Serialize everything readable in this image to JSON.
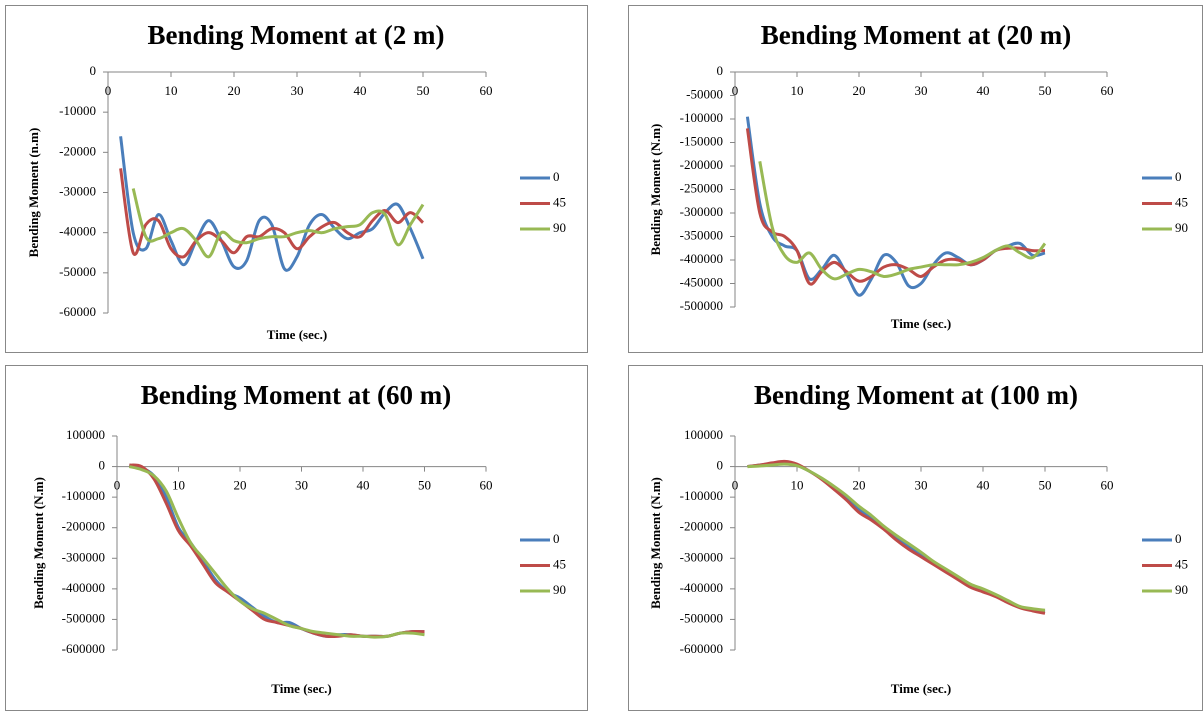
{
  "chart_data": [
    {
      "type": "line",
      "title": "Bending Moment at (2 m)",
      "x_label": "Time (sec.)",
      "y_label": "Bending Moment (n.m)",
      "x": [
        2,
        4,
        6,
        8,
        10,
        12,
        14,
        16,
        18,
        20,
        22,
        24,
        26,
        28,
        30,
        32,
        34,
        36,
        38,
        40,
        42,
        44,
        46,
        48,
        50
      ],
      "xlim": [
        0,
        60
      ],
      "xticks": [
        0,
        10,
        20,
        30,
        40,
        50,
        60
      ],
      "ylim": [
        -60000,
        0
      ],
      "yticks": [
        0,
        -10000,
        -20000,
        -30000,
        -40000,
        -50000,
        -60000
      ],
      "legend": "right",
      "series": [
        {
          "name": "0",
          "color": "#4a7ebb",
          "values": [
            -16000,
            -40000,
            -44000,
            -35500,
            -42000,
            -48000,
            -42000,
            -37000,
            -42000,
            -48500,
            -47000,
            -37000,
            -38000,
            -49000,
            -46000,
            -38000,
            -35500,
            -39000,
            -41500,
            -40000,
            -39000,
            -35000,
            -33000,
            -39000,
            -46500
          ]
        },
        {
          "name": "45",
          "color": "#be4b48",
          "values": [
            -24000,
            -45000,
            -38000,
            -37000,
            -44000,
            -46000,
            -42000,
            -40000,
            -42000,
            -45000,
            -41000,
            -41000,
            -39000,
            -40000,
            -44000,
            -41000,
            -38500,
            -37500,
            -40000,
            -41000,
            -37000,
            -34500,
            -37500,
            -35000,
            -37500
          ]
        },
        {
          "name": "90",
          "color": "#98b954",
          "values": [
            null,
            -29000,
            -41000,
            -41500,
            -40000,
            -39000,
            -42000,
            -46000,
            -40000,
            -42000,
            -42500,
            -41500,
            -41000,
            -41000,
            -40000,
            -39500,
            -40000,
            -39000,
            -38500,
            -38000,
            -35000,
            -35500,
            -43000,
            -38000,
            -33000
          ]
        }
      ]
    },
    {
      "type": "line",
      "title": "Bending Moment at (20 m)",
      "x_label": "Time (sec.)",
      "y_label": "Bending Moment (N.m)",
      "x": [
        2,
        4,
        6,
        8,
        10,
        12,
        14,
        16,
        18,
        20,
        22,
        24,
        26,
        28,
        30,
        32,
        34,
        36,
        38,
        40,
        42,
        44,
        46,
        48,
        50
      ],
      "xlim": [
        0,
        60
      ],
      "xticks": [
        0,
        10,
        20,
        30,
        40,
        50,
        60
      ],
      "ylim": [
        -500000,
        0
      ],
      "yticks": [
        0,
        -50000,
        -100000,
        -150000,
        -200000,
        -250000,
        -300000,
        -350000,
        -400000,
        -450000,
        -500000
      ],
      "legend": "right",
      "series": [
        {
          "name": "0",
          "color": "#4a7ebb",
          "values": [
            -95000,
            -280000,
            -350000,
            -370000,
            -380000,
            -440000,
            -420000,
            -390000,
            -430000,
            -475000,
            -440000,
            -390000,
            -405000,
            -455000,
            -450000,
            -410000,
            -385000,
            -395000,
            -410000,
            -400000,
            -380000,
            -370000,
            -365000,
            -390000,
            -385000
          ]
        },
        {
          "name": "45",
          "color": "#be4b48",
          "values": [
            -120000,
            -300000,
            -340000,
            -350000,
            -380000,
            -450000,
            -425000,
            -405000,
            -425000,
            -445000,
            -435000,
            -415000,
            -410000,
            -420000,
            -435000,
            -415000,
            -400000,
            -400000,
            -410000,
            -400000,
            -380000,
            -375000,
            -375000,
            -380000,
            -380000
          ]
        },
        {
          "name": "90",
          "color": "#98b954",
          "values": [
            null,
            -190000,
            -330000,
            -390000,
            -405000,
            -385000,
            -420000,
            -440000,
            -430000,
            -420000,
            -425000,
            -435000,
            -430000,
            -420000,
            -415000,
            -410000,
            -410000,
            -410000,
            -405000,
            -395000,
            -380000,
            -370000,
            -385000,
            -395000,
            -365000
          ]
        }
      ]
    },
    {
      "type": "line",
      "title": "Bending Moment at (60 m)",
      "x_label": "Time (sec.)",
      "y_label": "Bending Moment (N.m)",
      "x": [
        2,
        4,
        6,
        8,
        10,
        12,
        14,
        16,
        18,
        20,
        22,
        24,
        26,
        28,
        30,
        32,
        34,
        36,
        38,
        40,
        42,
        44,
        46,
        48,
        50
      ],
      "xlim": [
        0,
        60
      ],
      "xticks": [
        0,
        10,
        20,
        30,
        40,
        50,
        60
      ],
      "ylim": [
        -600000,
        100000
      ],
      "yticks": [
        100000,
        0,
        -100000,
        -200000,
        -300000,
        -400000,
        -500000,
        -600000
      ],
      "legend": "right",
      "series": [
        {
          "name": "0",
          "color": "#4a7ebb",
          "values": [
            5000,
            -5000,
            -30000,
            -100000,
            -200000,
            -250000,
            -310000,
            -370000,
            -410000,
            -430000,
            -460000,
            -490000,
            -510000,
            -510000,
            -530000,
            -545000,
            -555000,
            -550000,
            -550000,
            -555000,
            -555000,
            -555000,
            -545000,
            -540000,
            -540000
          ]
        },
        {
          "name": "45",
          "color": "#be4b48",
          "values": [
            5000,
            0,
            -40000,
            -120000,
            -210000,
            -260000,
            -320000,
            -380000,
            -410000,
            -440000,
            -470000,
            -500000,
            -510000,
            -520000,
            -530000,
            -545000,
            -555000,
            -555000,
            -550000,
            -555000,
            -555000,
            -555000,
            -545000,
            -540000,
            -540000
          ]
        },
        {
          "name": "90",
          "color": "#98b954",
          "values": [
            0,
            -10000,
            -30000,
            -80000,
            -170000,
            -250000,
            -300000,
            -350000,
            -400000,
            -440000,
            -465000,
            -480000,
            -500000,
            -520000,
            -530000,
            -540000,
            -545000,
            -550000,
            -555000,
            -555000,
            -558000,
            -555000,
            -545000,
            -545000,
            -550000
          ]
        }
      ]
    },
    {
      "type": "line",
      "title": "Bending Moment at (100 m)",
      "x_label": "Time (sec.)",
      "y_label": "Bending Moment (N.m)",
      "x": [
        2,
        4,
        6,
        8,
        10,
        12,
        14,
        16,
        18,
        20,
        22,
        24,
        26,
        28,
        30,
        32,
        34,
        36,
        38,
        40,
        42,
        44,
        46,
        48,
        50
      ],
      "xlim": [
        0,
        60
      ],
      "xticks": [
        0,
        10,
        20,
        30,
        40,
        50,
        60
      ],
      "ylim": [
        -600000,
        100000
      ],
      "yticks": [
        100000,
        0,
        -100000,
        -200000,
        -300000,
        -400000,
        -500000,
        -600000
      ],
      "legend": "right",
      "series": [
        {
          "name": "0",
          "color": "#4a7ebb",
          "values": [
            0,
            5000,
            10000,
            15000,
            5000,
            -15000,
            -40000,
            -70000,
            -100000,
            -140000,
            -170000,
            -200000,
            -230000,
            -260000,
            -290000,
            -315000,
            -340000,
            -365000,
            -390000,
            -405000,
            -420000,
            -440000,
            -460000,
            -470000,
            -475000
          ]
        },
        {
          "name": "45",
          "color": "#be4b48",
          "values": [
            0,
            5000,
            12000,
            17000,
            8000,
            -15000,
            -42000,
            -75000,
            -110000,
            -150000,
            -175000,
            -205000,
            -240000,
            -270000,
            -295000,
            -320000,
            -345000,
            -370000,
            -395000,
            -410000,
            -425000,
            -445000,
            -462000,
            -472000,
            -480000
          ]
        },
        {
          "name": "90",
          "color": "#98b954",
          "values": [
            0,
            2000,
            5000,
            8000,
            3000,
            -15000,
            -38000,
            -65000,
            -95000,
            -130000,
            -160000,
            -195000,
            -225000,
            -252000,
            -280000,
            -310000,
            -335000,
            -360000,
            -385000,
            -400000,
            -418000,
            -438000,
            -458000,
            -465000,
            -470000
          ]
        }
      ]
    }
  ]
}
